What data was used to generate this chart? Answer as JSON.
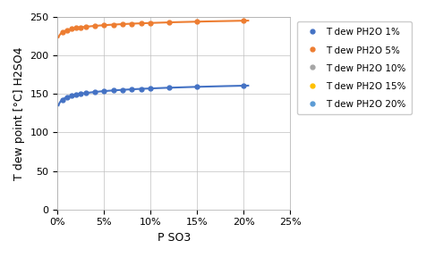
{
  "title": "",
  "xlabel": "P SO3",
  "ylabel": "T dew point [°C] H2SO4",
  "xlim": [
    0,
    0.25
  ],
  "ylim": [
    0,
    250
  ],
  "xticks": [
    0.0,
    0.05,
    0.1,
    0.15,
    0.2,
    0.25
  ],
  "xticklabels": [
    "0%",
    "5%",
    "10%",
    "15%",
    "20%",
    "25%"
  ],
  "yticks": [
    0,
    50,
    100,
    150,
    200,
    250
  ],
  "grid": true,
  "series": [
    {
      "label": "T dew PH2O 1%",
      "ph2o": 0.01,
      "color": "#4472C4",
      "marker": "o"
    },
    {
      "label": "T dew PH2O 5%",
      "ph2o": 0.05,
      "color": "#ED7D31",
      "marker": "o"
    },
    {
      "label": "T dew PH2O 10%",
      "ph2o": 0.1,
      "color": "#A5A5A5",
      "marker": "o"
    },
    {
      "label": "T dew PH2O 15%",
      "ph2o": 0.15,
      "color": "#FFC000",
      "marker": "o"
    },
    {
      "label": "T dew PH2O 20%",
      "ph2o": 0.2,
      "color": "#5B9BD5",
      "marker": "o"
    }
  ],
  "pso3_points": [
    0.005,
    0.01,
    0.015,
    0.02,
    0.025,
    0.03,
    0.04,
    0.05,
    0.06,
    0.07,
    0.08,
    0.09,
    0.1,
    0.12,
    0.15,
    0.2
  ],
  "background_color": "#ffffff",
  "legend_fontsize": 7.5,
  "axis_fontsize": 9,
  "tick_fontsize": 8
}
